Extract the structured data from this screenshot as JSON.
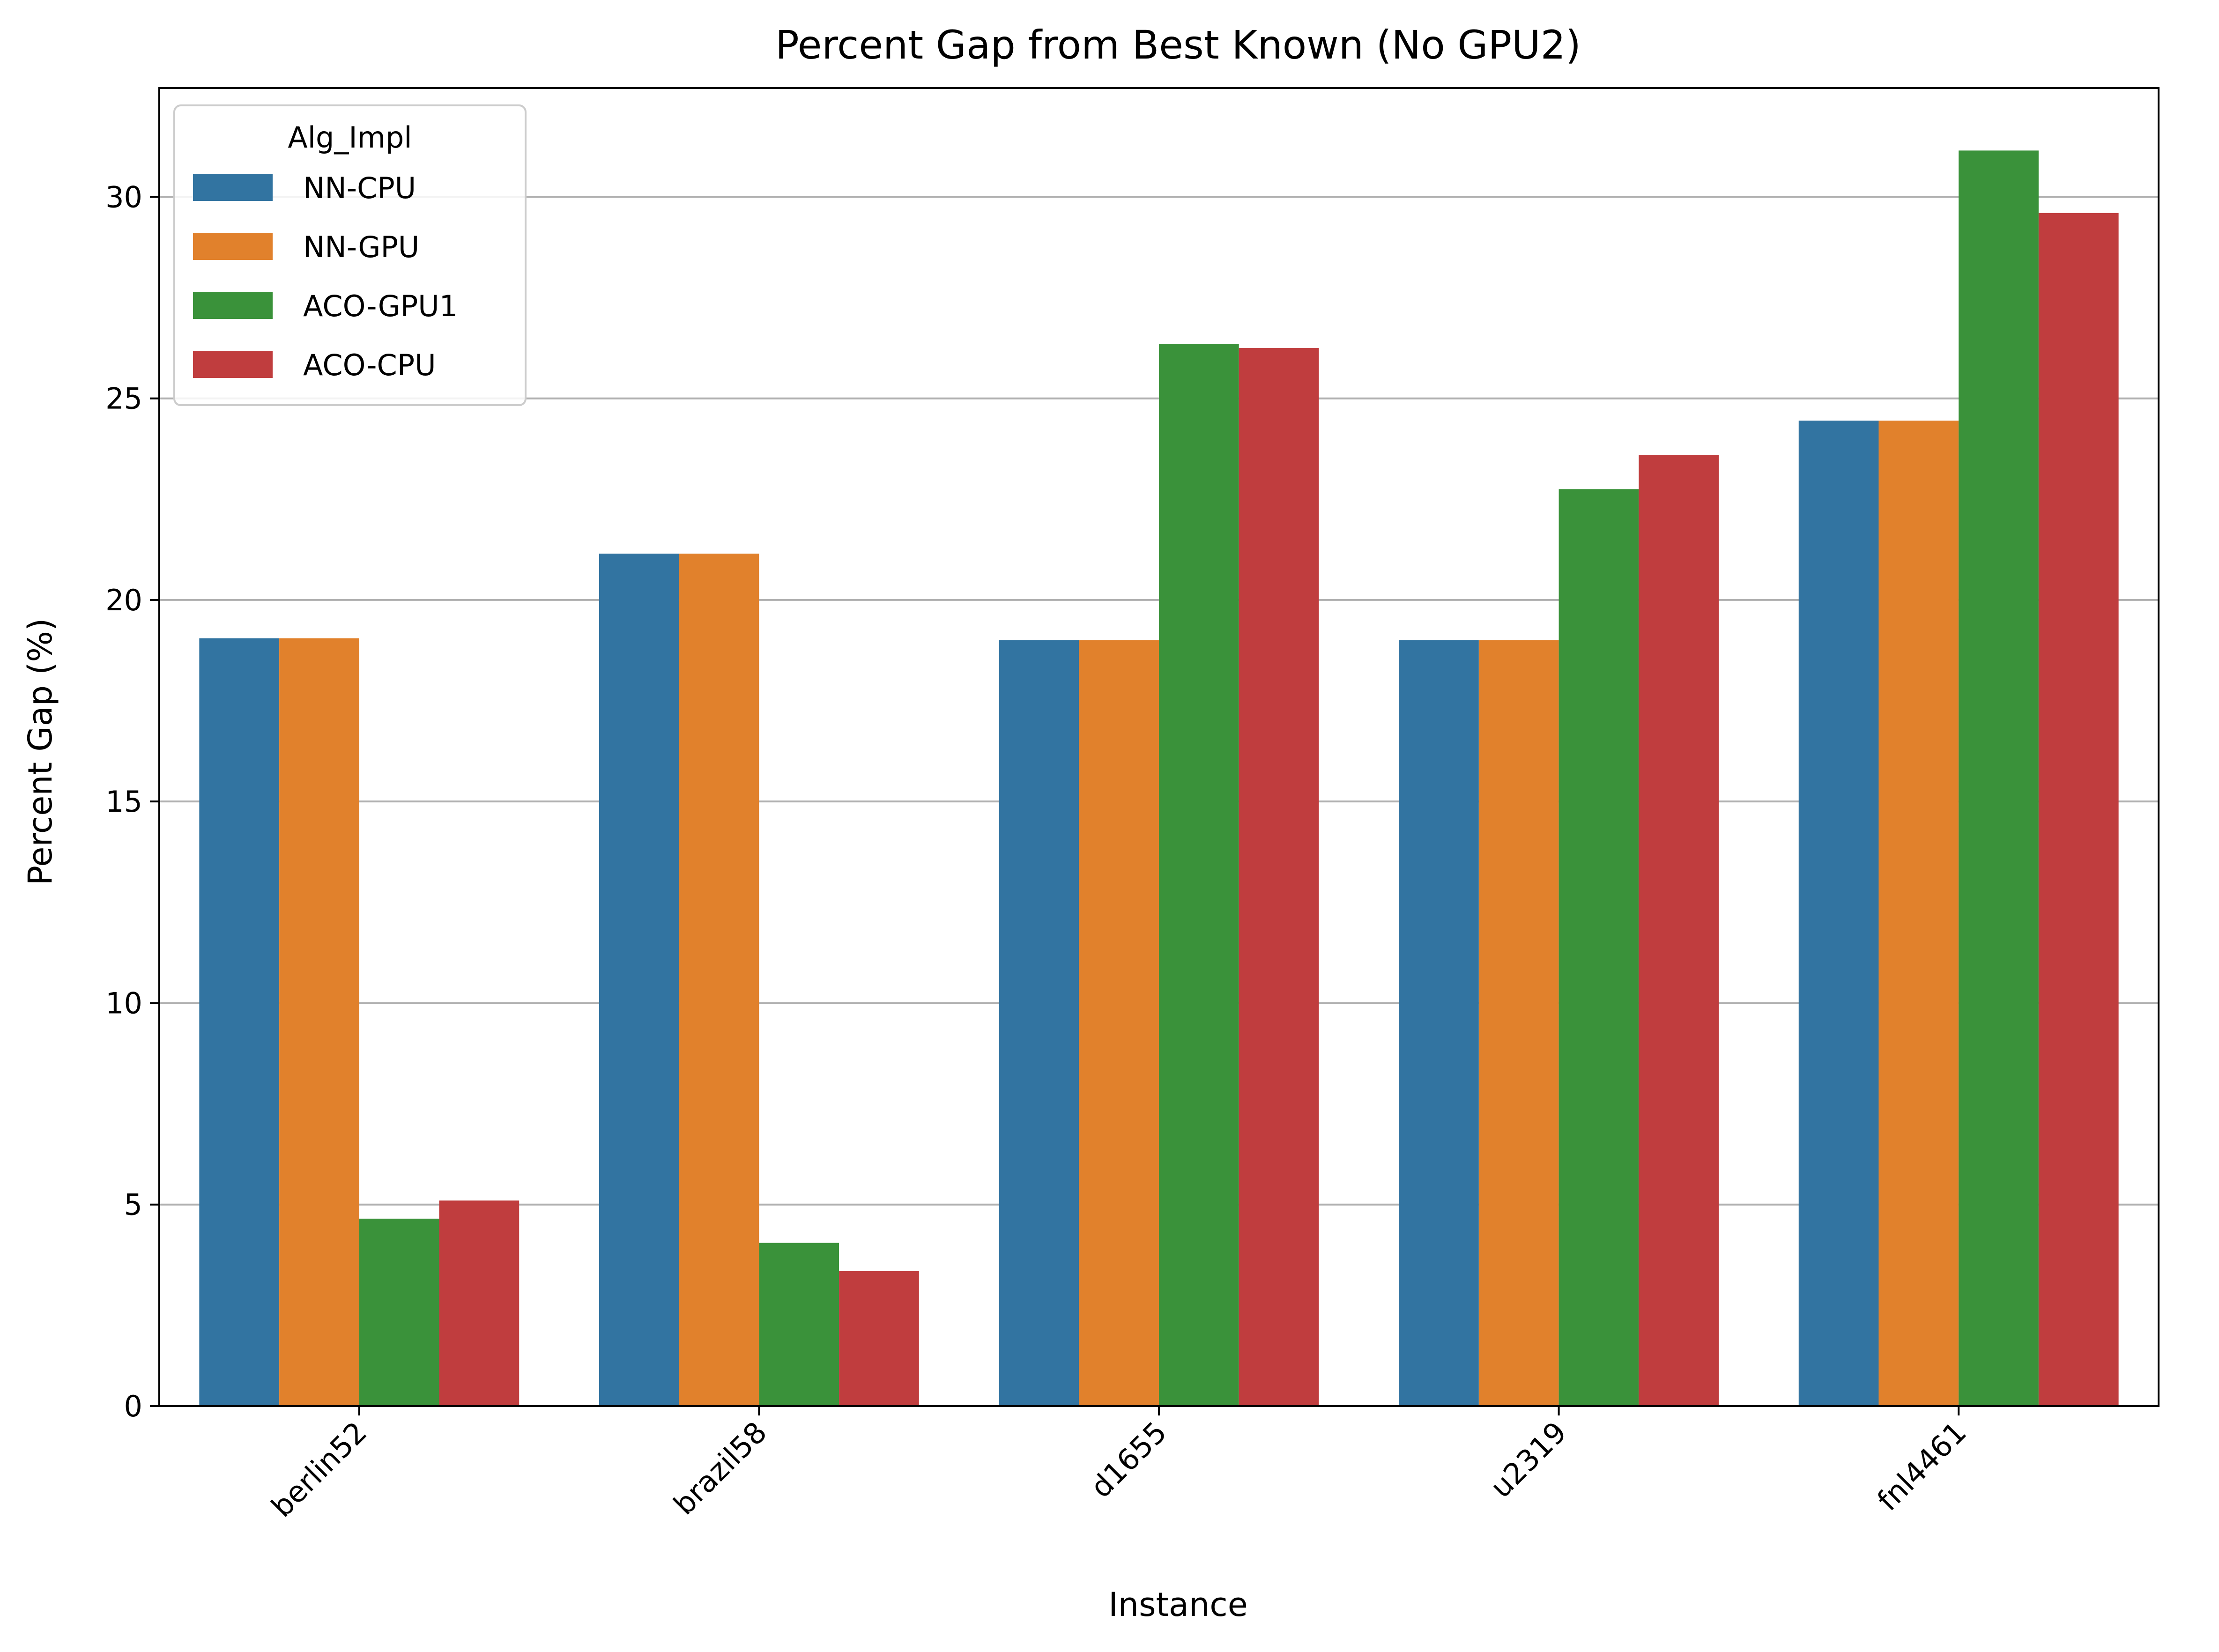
{
  "chart_data": {
    "type": "bar",
    "title": "Percent Gap from Best Known (No GPU2)",
    "xlabel": "Instance",
    "ylabel": "Percent Gap (%)",
    "categories": [
      "berlin52",
      "brazil58",
      "d1655",
      "u2319",
      "fnl4461"
    ],
    "series": [
      {
        "name": "NN-CPU",
        "color": "#3274a1",
        "values": [
          19.05,
          21.15,
          19.0,
          19.0,
          24.45
        ]
      },
      {
        "name": "NN-GPU",
        "color": "#e1812c",
        "values": [
          19.05,
          21.15,
          19.0,
          19.0,
          24.45
        ]
      },
      {
        "name": "ACO-GPU1",
        "color": "#3a923a",
        "values": [
          4.65,
          4.05,
          26.35,
          22.75,
          31.15
        ]
      },
      {
        "name": "ACO-CPU",
        "color": "#c03d3e",
        "values": [
          5.1,
          3.35,
          26.25,
          23.6,
          29.6
        ]
      }
    ],
    "ylim": [
      0,
      32.7
    ],
    "yticks": [
      0,
      5,
      10,
      15,
      20,
      25,
      30
    ],
    "grid": "y",
    "legend": {
      "title": "Alg_Impl",
      "position": "top-left"
    }
  }
}
